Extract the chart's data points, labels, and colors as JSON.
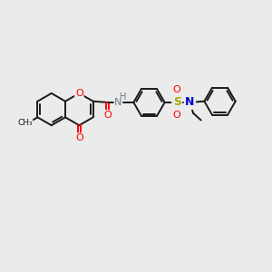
{
  "bg_color": "#ebebeb",
  "bond_color": "#1a1a1a",
  "o_color": "#ff0000",
  "n_color": "#0000cc",
  "s_color": "#aaaa00",
  "nh_color": "#667788",
  "figsize": [
    3.0,
    3.0
  ],
  "dpi": 100,
  "xlim": [
    0,
    12
  ],
  "ylim": [
    0,
    10
  ]
}
